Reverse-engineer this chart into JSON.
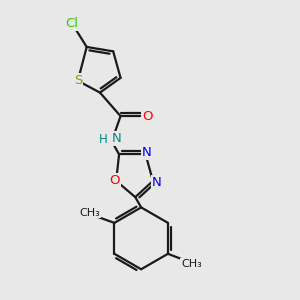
{
  "background_color": "#e8e8e8",
  "bond_color": "#1a1a1a",
  "cl_color": "#33cc00",
  "s_color": "#999900",
  "o_color": "#ff0000",
  "n_color": "#0000ee",
  "nh_color": "#008888",
  "bond_lw": 1.6,
  "dbo": 0.08,
  "figsize": [
    3.0,
    3.0
  ],
  "dpi": 100,
  "xlim": [
    0,
    10
  ],
  "ylim": [
    0,
    10
  ]
}
